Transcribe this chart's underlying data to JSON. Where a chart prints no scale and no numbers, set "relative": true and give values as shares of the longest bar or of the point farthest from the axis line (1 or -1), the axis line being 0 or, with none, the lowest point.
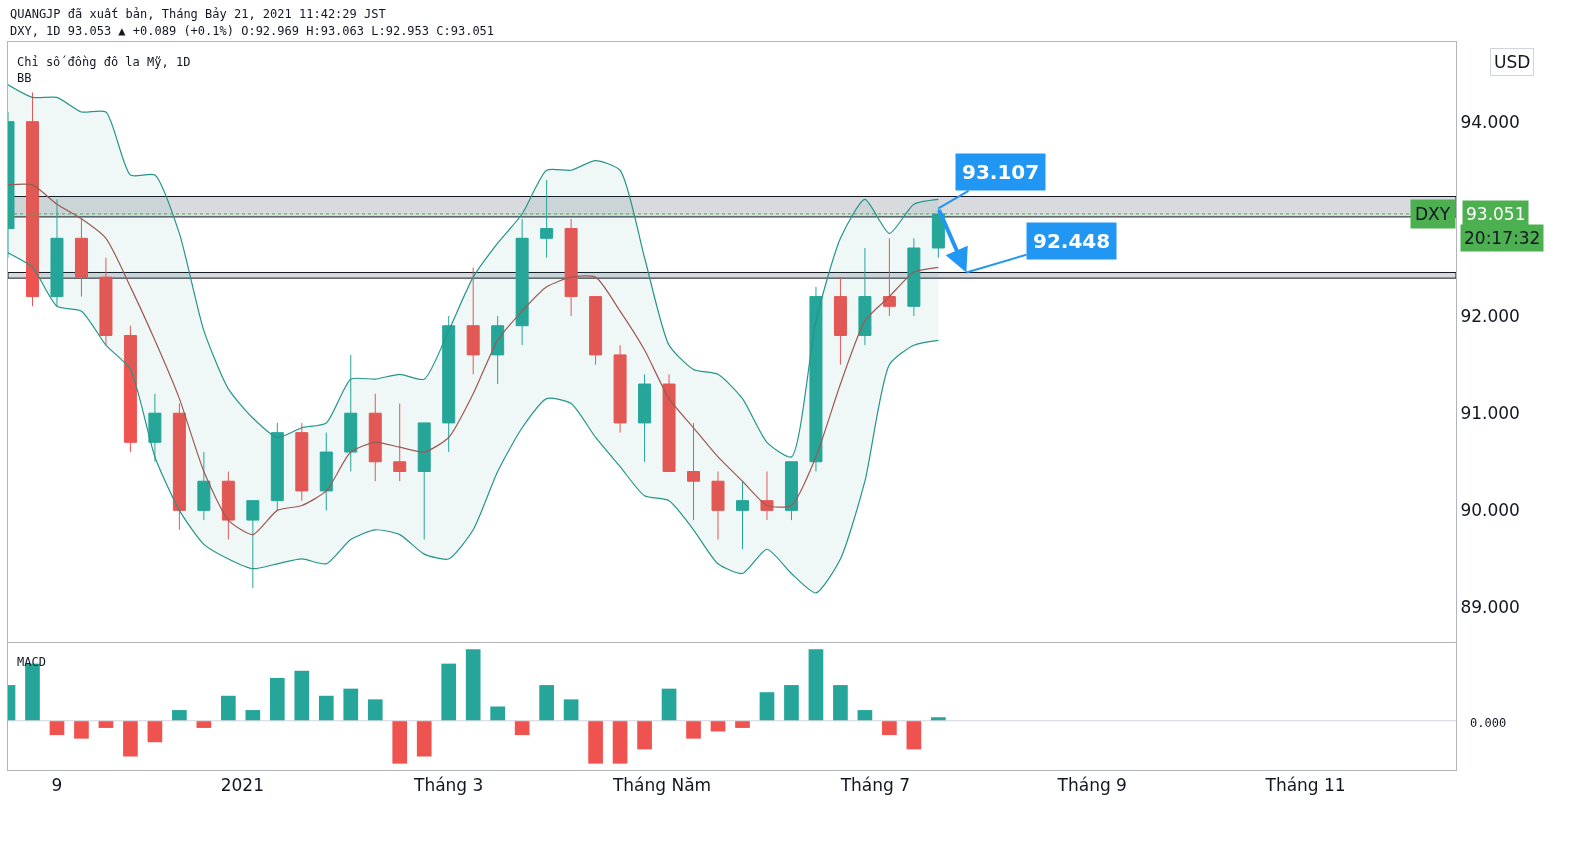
{
  "chart_data": [
    {
      "type": "candlestick",
      "title": "Chỉ số đồng đô la Mỹ, 1D",
      "annotations": [
        "QUANGJP đã xuất bản, Tháng Bảy 21, 2021 11:42:29 JST",
        "DXY, 1D 93.053 ▲ +0.089 (+0.1%) O:92.969 H:93.063 L:92.953 C:93.051",
        "BB",
        "USD",
        "93.051",
        "20:17:32",
        {
          "text": "93.107",
          "x": "2021-07-19",
          "y": 93.107
        },
        {
          "text": "92.448",
          "x": "2021-07-27",
          "y": 92.448
        }
      ],
      "x": [
        "2020-10-26",
        "2020-11-02",
        "2020-11-09",
        "2020-11-16",
        "2020-11-23",
        "2020-11-30",
        "2020-12-07",
        "2020-12-14",
        "2020-12-21",
        "2020-12-28",
        "2021-01-04",
        "2021-01-11",
        "2021-01-18",
        "2021-01-25",
        "2021-02-01",
        "2021-02-08",
        "2021-02-15",
        "2021-02-22",
        "2021-03-01",
        "2021-03-08",
        "2021-03-15",
        "2021-03-22",
        "2021-03-29",
        "2021-04-05",
        "2021-04-12",
        "2021-04-19",
        "2021-04-26",
        "2021-05-03",
        "2021-05-10",
        "2021-05-17",
        "2021-05-24",
        "2021-05-31",
        "2021-06-07",
        "2021-06-14",
        "2021-06-21",
        "2021-06-28",
        "2021-07-05",
        "2021-07-12",
        "2021-07-19"
      ],
      "ohlc": [
        [
          92.9,
          94.1,
          92.6,
          94.0
        ],
        [
          94.0,
          94.3,
          92.1,
          92.2
        ],
        [
          92.2,
          93.2,
          92.1,
          92.8
        ],
        [
          92.8,
          93.0,
          92.2,
          92.4
        ],
        [
          92.4,
          92.6,
          91.7,
          91.8
        ],
        [
          91.8,
          91.9,
          90.6,
          90.7
        ],
        [
          90.7,
          91.2,
          90.5,
          91.0
        ],
        [
          91.0,
          91.1,
          89.8,
          90.0
        ],
        [
          90.0,
          90.6,
          89.9,
          90.3
        ],
        [
          90.3,
          90.4,
          89.7,
          89.9
        ],
        [
          89.9,
          90.1,
          89.2,
          90.1
        ],
        [
          90.1,
          90.9,
          90.0,
          90.8
        ],
        [
          90.8,
          90.9,
          90.1,
          90.2
        ],
        [
          90.2,
          90.8,
          90.0,
          90.6
        ],
        [
          90.6,
          91.6,
          90.4,
          91.0
        ],
        [
          91.0,
          91.2,
          90.3,
          90.5
        ],
        [
          90.5,
          91.1,
          90.3,
          90.4
        ],
        [
          90.4,
          90.9,
          89.7,
          90.9
        ],
        [
          90.9,
          92.0,
          90.6,
          91.9
        ],
        [
          91.9,
          92.5,
          91.4,
          91.6
        ],
        [
          91.6,
          92.0,
          91.3,
          91.9
        ],
        [
          91.9,
          93.0,
          91.7,
          92.8
        ],
        [
          92.8,
          93.4,
          92.6,
          92.9
        ],
        [
          92.9,
          93.0,
          92.0,
          92.2
        ],
        [
          92.2,
          92.2,
          91.5,
          91.6
        ],
        [
          91.6,
          91.7,
          90.8,
          90.9
        ],
        [
          90.9,
          91.4,
          90.5,
          91.3
        ],
        [
          91.3,
          91.4,
          90.4,
          90.4
        ],
        [
          90.4,
          90.9,
          89.9,
          90.3
        ],
        [
          90.3,
          90.4,
          89.7,
          90.0
        ],
        [
          90.0,
          90.3,
          89.6,
          90.1
        ],
        [
          90.1,
          90.4,
          89.9,
          90.0
        ],
        [
          90.0,
          90.5,
          89.9,
          90.5
        ],
        [
          90.5,
          92.3,
          90.4,
          92.2
        ],
        [
          92.2,
          92.4,
          91.5,
          91.8
        ],
        [
          91.8,
          92.7,
          91.7,
          92.2
        ],
        [
          92.2,
          92.8,
          92.0,
          92.1
        ],
        [
          92.1,
          92.8,
          92.0,
          92.7
        ],
        [
          92.7,
          93.107,
          92.6,
          93.05
        ]
      ],
      "colors": [
        "#26a69a",
        "#ef5350",
        "#26a69a",
        "#ef5350",
        "#ef5350",
        "#ef5350",
        "#26a69a",
        "#ef5350",
        "#26a69a",
        "#ef5350",
        "#26a69a",
        "#26a69a",
        "#ef5350",
        "#26a69a",
        "#26a69a",
        "#ef5350",
        "#ef5350",
        "#26a69a",
        "#26a69a",
        "#ef5350",
        "#26a69a",
        "#26a69a",
        "#26a69a",
        "#ef5350",
        "#ef5350",
        "#ef5350",
        "#26a69a",
        "#ef5350",
        "#ef5350",
        "#ef5350",
        "#26a69a",
        "#ef5350",
        "#26a69a",
        "#26a69a",
        "#ef5350",
        "#26a69a",
        "#ef5350",
        "#26a69a",
        "#26a69a"
      ],
      "series": [
        {
          "type": "line",
          "color": "#26968a",
          "values": [
            94.38,
            94.25,
            94.25,
            94.1,
            94.1,
            93.45,
            93.45,
            92.85,
            91.85,
            91.25,
            90.95,
            90.75,
            90.85,
            90.9,
            91.35,
            91.35,
            91.4,
            91.35,
            91.85,
            92.4,
            92.75,
            93.05,
            93.5,
            93.5,
            93.6,
            93.5,
            92.6,
            91.7,
            91.45,
            91.4,
            91.15,
            90.7,
            90.55,
            91.95,
            92.8,
            93.2,
            92.85,
            93.15,
            93.2
          ]
        },
        {
          "type": "line",
          "color": "#26968a",
          "values": [
            92.65,
            92.5,
            92.1,
            92.05,
            91.7,
            91.45,
            90.55,
            90.0,
            89.65,
            89.5,
            89.4,
            89.45,
            89.5,
            89.45,
            89.7,
            89.8,
            89.75,
            89.55,
            89.5,
            89.8,
            90.4,
            90.85,
            91.15,
            91.1,
            90.75,
            90.45,
            90.15,
            90.1,
            89.8,
            89.45,
            89.35,
            89.6,
            89.35,
            89.15,
            89.5,
            90.3,
            91.5,
            91.7,
            91.75
          ]
        },
        {
          "type": "line",
          "color": "#9c5a55",
          "values": [
            93.35,
            93.35,
            93.15,
            93.0,
            92.8,
            92.3,
            91.75,
            91.15,
            90.4,
            89.9,
            89.75,
            90.0,
            90.05,
            90.2,
            90.6,
            90.7,
            90.65,
            90.6,
            90.75,
            91.2,
            91.75,
            92.05,
            92.3,
            92.4,
            92.4,
            92.05,
            91.65,
            91.15,
            90.85,
            90.55,
            90.3,
            90.05,
            90.05,
            90.55,
            91.3,
            91.95,
            92.2,
            92.45,
            92.5
          ],
          "upper": [
            94.38,
            94.25,
            94.25,
            94.1,
            94.1,
            93.45,
            93.45,
            92.85,
            91.85,
            91.25,
            90.95,
            90.75,
            90.85,
            90.9,
            91.35,
            91.35,
            91.4,
            91.35,
            91.85,
            92.4,
            92.75,
            93.05,
            93.5,
            93.5,
            93.6,
            93.5,
            92.6,
            91.7,
            91.45,
            91.4,
            91.15,
            90.7,
            90.55,
            91.95,
            92.8,
            93.2,
            92.85,
            93.15,
            93.2
          ],
          "lower": [
            92.65,
            92.5,
            92.1,
            92.05,
            91.7,
            91.45,
            90.55,
            90.0,
            89.65,
            89.5,
            89.4,
            89.45,
            89.5,
            89.45,
            89.7,
            89.8,
            89.75,
            89.55,
            89.5,
            89.8,
            90.4,
            90.85,
            91.15,
            91.1,
            90.75,
            90.45,
            90.15,
            90.1,
            89.8,
            89.45,
            89.35,
            89.6,
            89.35,
            89.15,
            89.5,
            90.3,
            91.5,
            91.7,
            91.75
          ]
        }
      ],
      "bands": [
        {
          "axis": "y",
          "from": 93.02,
          "to": 93.23,
          "color": "#b8bcc2"
        },
        {
          "axis": "y",
          "from": 92.39,
          "to": 92.448,
          "color": "#b8bcc2"
        }
      ],
      "ref_lines": [
        {
          "axis": "y",
          "value": 93.051,
          "label": "DXY",
          "color": "#4caf50",
          "line_style": "dotted"
        }
      ],
      "xlim": [
        "2020-10-26",
        "2021-12-14"
      ],
      "ylim": [
        88.65,
        94.82
      ],
      "yticks": [
        {
          "value": 89,
          "label": "89.000"
        },
        {
          "value": 90,
          "label": "90.000"
        },
        {
          "value": 91,
          "label": "91.000"
        },
        {
          "value": 92,
          "label": "92.000"
        },
        {
          "value": 94,
          "label": "94.000"
        }
      ],
      "tick_labels": "y"
    },
    {
      "type": "bar",
      "relative": true,
      "annotations": [
        "MACD",
        "0.000"
      ],
      "x": [
        "2020-10-26",
        "2020-11-02",
        "2020-11-09",
        "2020-11-16",
        "2020-11-23",
        "2020-11-30",
        "2020-12-07",
        "2020-12-14",
        "2020-12-21",
        "2020-12-28",
        "2021-01-04",
        "2021-01-11",
        "2021-01-18",
        "2021-01-25",
        "2021-02-01",
        "2021-02-08",
        "2021-02-15",
        "2021-02-22",
        "2021-03-01",
        "2021-03-08",
        "2021-03-15",
        "2021-03-22",
        "2021-03-29",
        "2021-04-05",
        "2021-04-12",
        "2021-04-19",
        "2021-04-26",
        "2021-05-03",
        "2021-05-10",
        "2021-05-17",
        "2021-05-24",
        "2021-05-31",
        "2021-06-07",
        "2021-06-14",
        "2021-06-21",
        "2021-06-28",
        "2021-07-05",
        "2021-07-12",
        "2021-07-19"
      ],
      "values": [
        0.5,
        0.8,
        -0.2,
        -0.25,
        -0.1,
        -0.5,
        -0.3,
        0.15,
        -0.1,
        0.35,
        0.15,
        0.6,
        0.7,
        0.35,
        0.45,
        0.3,
        -0.6,
        -0.5,
        0.8,
        1.0,
        0.2,
        -0.2,
        0.5,
        0.3,
        -0.6,
        -0.6,
        -0.4,
        0.45,
        -0.25,
        -0.15,
        -0.1,
        0.4,
        0.5,
        1.0,
        0.5,
        0.15,
        -0.2,
        -0.4,
        0.05
      ],
      "colors": [
        "#26a69a",
        "#26a69a",
        "#ef5350",
        "#ef5350",
        "#ef5350",
        "#ef5350",
        "#ef5350",
        "#26a69a",
        "#ef5350",
        "#26a69a",
        "#26a69a",
        "#26a69a",
        "#26a69a",
        "#26a69a",
        "#26a69a",
        "#26a69a",
        "#ef5350",
        "#ef5350",
        "#26a69a",
        "#26a69a",
        "#26a69a",
        "#ef5350",
        "#26a69a",
        "#26a69a",
        "#ef5350",
        "#ef5350",
        "#ef5350",
        "#26a69a",
        "#ef5350",
        "#ef5350",
        "#ef5350",
        "#26a69a",
        "#26a69a",
        "#26a69a",
        "#26a69a",
        "#26a69a",
        "#ef5350",
        "#ef5350",
        "#26a69a"
      ],
      "xlim": [
        "2020-10-26",
        "2021-12-14"
      ],
      "xticks": [
        {
          "value": "2020-11-09",
          "label": "9"
        },
        {
          "value": "2021-01-01",
          "label": "2021"
        },
        {
          "value": "2021-03-01",
          "label": "Tháng 3"
        },
        {
          "value": "2021-05-01",
          "label": "Tháng Năm"
        },
        {
          "value": "2021-07-01",
          "label": "Tháng 7"
        },
        {
          "value": "2021-09-01",
          "label": "Tháng 9"
        },
        {
          "value": "2021-11-01",
          "label": "Tháng 11"
        }
      ],
      "tick_labels": "x"
    }
  ]
}
